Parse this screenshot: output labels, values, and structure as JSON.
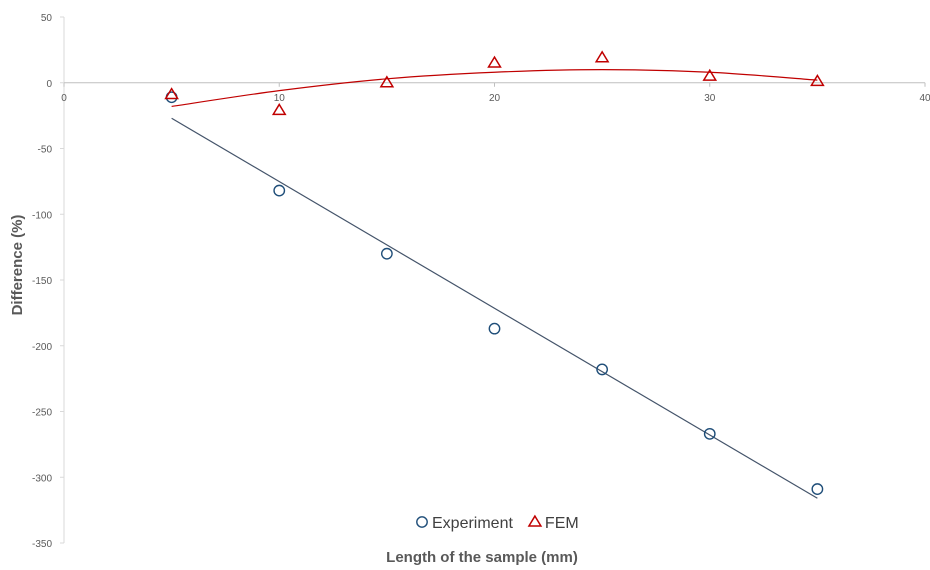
{
  "chart_data": {
    "type": "scatter",
    "title": "",
    "xlabel": "Length of the sample (mm)",
    "ylabel": "Difference (%)",
    "xlim": [
      0,
      40
    ],
    "ylim": [
      -350,
      50
    ],
    "x_ticks": [
      "0",
      "10",
      "20",
      "30",
      "40"
    ],
    "y_ticks": [
      "50",
      "0",
      "-50",
      "-100",
      "-150",
      "-200",
      "-250",
      "-300",
      "-350"
    ],
    "grid": false,
    "legend_position": "bottom",
    "series": [
      {
        "name": "Experiment",
        "marker": "circle",
        "color": "#1f4e79",
        "x": [
          5,
          10,
          15,
          20,
          25,
          30,
          35
        ],
        "y": [
          -11,
          -82,
          -130,
          -187,
          -218,
          -267,
          -309
        ],
        "trendline": {
          "type": "linear",
          "color": "#44546a",
          "from": [
            5,
            -27
          ],
          "to": [
            35,
            -316
          ]
        }
      },
      {
        "name": "FEM",
        "marker": "triangle",
        "color": "#c00000",
        "x": [
          5,
          10,
          15,
          20,
          25,
          30,
          35
        ],
        "y": [
          -9,
          -21,
          0,
          15,
          19,
          5,
          1
        ],
        "trendline": {
          "type": "polynomial",
          "order": 2,
          "color": "#c00000",
          "points": [
            [
              5,
              -18
            ],
            [
              10,
              -6
            ],
            [
              15,
              3
            ],
            [
              20,
              8
            ],
            [
              25,
              10
            ],
            [
              30,
              8
            ],
            [
              35,
              2
            ]
          ]
        }
      }
    ]
  }
}
